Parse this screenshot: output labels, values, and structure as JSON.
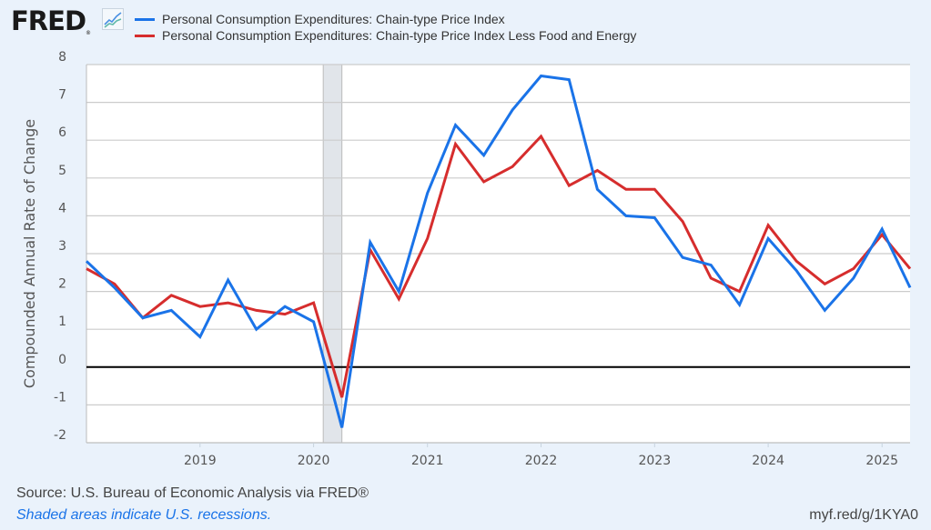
{
  "header": {
    "logo_text": "FRED",
    "logo_reg": "®",
    "logo_icon": "line-chart-icon"
  },
  "footer": {
    "source": "Source: U.S. Bureau of Economic Analysis via FRED®",
    "recession_note": "Shaded areas indicate U.S. recessions.",
    "short_url": "myf.red/g/1KYA0"
  },
  "colors": {
    "series_blue": "#1a73e8",
    "series_red": "#d62d2d",
    "recession_shade": "#e1e5ea",
    "grid": "#cccccc",
    "zero_line": "#000000"
  },
  "chart_data": {
    "type": "line",
    "title": "",
    "xlabel": "",
    "ylabel": "Compounded Annual Rate of Change",
    "ylim": [
      -2,
      8
    ],
    "yticks": [
      "8",
      "7",
      "6",
      "5",
      "4",
      "3",
      "2",
      "1",
      "0",
      "-1",
      "-2"
    ],
    "ytick_values": [
      8,
      7,
      6,
      5,
      4,
      3,
      2,
      1,
      0,
      -1,
      -2
    ],
    "xlim": [
      "2018-01-01",
      "2025-04-01"
    ],
    "xticks": [
      "2019",
      "2020",
      "2021",
      "2022",
      "2023",
      "2024",
      "2025"
    ],
    "grid": true,
    "legend_position": "top",
    "recessions": [
      {
        "start": "2020-02-01",
        "end": "2020-04-01"
      }
    ],
    "x": [
      "2018-01-01",
      "2018-04-01",
      "2018-07-01",
      "2018-10-01",
      "2019-01-01",
      "2019-04-01",
      "2019-07-01",
      "2019-10-01",
      "2020-01-01",
      "2020-04-01",
      "2020-07-01",
      "2020-10-01",
      "2021-01-01",
      "2021-04-01",
      "2021-07-01",
      "2021-10-01",
      "2022-01-01",
      "2022-04-01",
      "2022-07-01",
      "2022-10-01",
      "2023-01-01",
      "2023-04-01",
      "2023-07-01",
      "2023-10-01",
      "2024-01-01",
      "2024-04-01",
      "2024-07-01",
      "2024-10-01",
      "2025-01-01",
      "2025-04-01"
    ],
    "series": [
      {
        "name": "Personal Consumption Expenditures: Chain-type Price Index",
        "color": "#1a73e8",
        "values": [
          2.8,
          2.1,
          1.3,
          1.5,
          0.8,
          2.3,
          1.0,
          1.6,
          1.2,
          -1.6,
          3.3,
          2.0,
          4.6,
          6.4,
          5.6,
          6.8,
          7.7,
          7.6,
          4.7,
          4.0,
          3.95,
          2.9,
          2.7,
          1.65,
          3.4,
          2.55,
          1.5,
          2.35,
          3.65,
          2.1
        ]
      },
      {
        "name": "Personal Consumption Expenditures: Chain-type Price Index Less Food and Energy",
        "color": "#d62d2d",
        "values": [
          2.6,
          2.2,
          1.3,
          1.9,
          1.6,
          1.7,
          1.5,
          1.4,
          1.7,
          -0.8,
          3.1,
          1.8,
          3.4,
          5.9,
          4.9,
          5.3,
          6.1,
          4.8,
          5.2,
          4.7,
          4.7,
          3.85,
          2.35,
          2.0,
          3.75,
          2.8,
          2.2,
          2.6,
          3.5,
          2.6
        ]
      }
    ]
  }
}
